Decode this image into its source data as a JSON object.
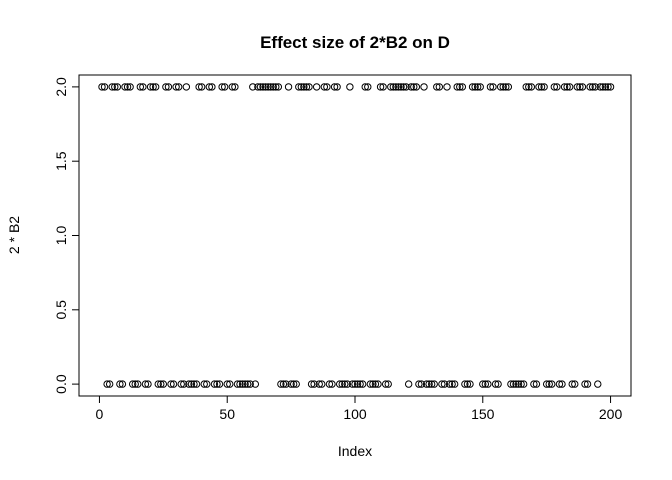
{
  "chart_data": {
    "type": "scatter",
    "title": "Effect size of 2*B2 on D",
    "xlabel": "Index",
    "ylabel": "2 * B2",
    "xlim": [
      -8,
      208
    ],
    "ylim": [
      -0.08,
      2.08
    ],
    "xticks": [
      0,
      50,
      100,
      150,
      200
    ],
    "yticks": [
      0.0,
      0.5,
      1.0,
      1.5,
      2.0
    ],
    "xtick_labels": [
      "0",
      "50",
      "100",
      "150",
      "200"
    ],
    "ytick_labels": [
      "0.0",
      "0.5",
      "1.0",
      "1.5",
      "2.0"
    ],
    "grid": false,
    "legend": "none",
    "series": [
      {
        "marker": "open-circle",
        "color": "#000000",
        "x": [
          1,
          2,
          3,
          4,
          5,
          6,
          7,
          8,
          9,
          10,
          11,
          12,
          13,
          14,
          15,
          16,
          17,
          18,
          19,
          20,
          21,
          22,
          23,
          24,
          25,
          26,
          27,
          28,
          29,
          30,
          31,
          32,
          33,
          34,
          35,
          36,
          37,
          38,
          39,
          40,
          41,
          42,
          43,
          44,
          45,
          46,
          47,
          48,
          49,
          50,
          51,
          52,
          53,
          54,
          55,
          56,
          57,
          58,
          59,
          60,
          61,
          62,
          63,
          64,
          65,
          66,
          67,
          68,
          69,
          70,
          71,
          72,
          73,
          74,
          75,
          76,
          77,
          78,
          79,
          80,
          81,
          82,
          83,
          84,
          85,
          86,
          87,
          88,
          89,
          90,
          91,
          92,
          93,
          94,
          95,
          96,
          97,
          98,
          99,
          100,
          101,
          102,
          103,
          104,
          105,
          106,
          107,
          108,
          109,
          110,
          111,
          112,
          113,
          114,
          115,
          116,
          117,
          118,
          119,
          120,
          121,
          122,
          123,
          124,
          125,
          126,
          127,
          128,
          129,
          130,
          131,
          132,
          133,
          134,
          135,
          136,
          137,
          138,
          139,
          140,
          141,
          142,
          143,
          144,
          145,
          146,
          147,
          148,
          149,
          150,
          151,
          152,
          153,
          154,
          155,
          156,
          157,
          158,
          159,
          160,
          161,
          162,
          163,
          164,
          165,
          166,
          167,
          168,
          169,
          170,
          171,
          172,
          173,
          174,
          175,
          176,
          177,
          178,
          179,
          180,
          181,
          182,
          183,
          184,
          185,
          186,
          187,
          188,
          189,
          190,
          191,
          192,
          193,
          194,
          195,
          196,
          197,
          198,
          199,
          200
        ],
        "y": [
          2,
          2,
          0,
          0,
          2,
          2,
          2,
          0,
          0,
          2,
          2,
          2,
          0,
          0,
          0,
          2,
          2,
          0,
          0,
          2,
          2,
          2,
          0,
          0,
          0,
          2,
          2,
          0,
          0,
          2,
          2,
          0,
          0,
          2,
          0,
          0,
          0,
          0,
          2,
          2,
          0,
          0,
          2,
          2,
          0,
          0,
          0,
          2,
          2,
          0,
          0,
          2,
          2,
          0,
          0,
          0,
          0,
          0,
          0,
          2,
          0,
          2,
          2,
          2,
          2,
          2,
          2,
          2,
          2,
          2,
          0,
          0,
          0,
          2,
          0,
          0,
          0,
          2,
          2,
          2,
          2,
          2,
          0,
          0,
          2,
          0,
          0,
          2,
          2,
          0,
          0,
          2,
          2,
          0,
          0,
          0,
          0,
          2,
          0,
          0,
          0,
          0,
          0,
          2,
          2,
          0,
          0,
          0,
          0,
          2,
          2,
          0,
          0,
          2,
          2,
          2,
          2,
          2,
          2,
          2,
          0,
          2,
          2,
          2,
          0,
          0,
          2,
          0,
          0,
          0,
          0,
          2,
          2,
          0,
          0,
          2,
          0,
          0,
          0,
          2,
          2,
          2,
          0,
          0,
          0,
          2,
          2,
          2,
          2,
          0,
          0,
          0,
          2,
          2,
          0,
          0,
          2,
          2,
          2,
          2,
          0,
          0,
          0,
          0,
          0,
          0,
          2,
          2,
          2,
          0,
          0,
          2,
          2,
          2,
          0,
          0,
          0,
          2,
          2,
          0,
          0,
          2,
          2,
          2,
          0,
          0,
          2,
          2,
          2,
          0,
          0,
          2,
          2,
          2,
          0,
          2,
          2,
          2,
          2,
          2
        ]
      }
    ]
  }
}
